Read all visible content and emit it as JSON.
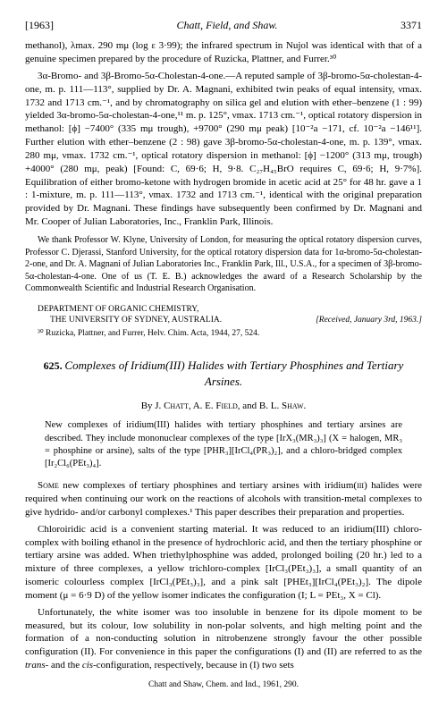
{
  "header": {
    "year": "[1963]",
    "authors": "Chatt, Field, and Shaw.",
    "page": "3371"
  },
  "body1": "methanol), λmax. 290 mμ (log ε 3·99); the infrared spectrum in Nujol was identical with that of a genuine specimen prepared by the procedure of Ruzicka, Plattner, and Furrer.³⁰",
  "body2": "3α-Bromo- and 3β-Bromo-5α-Cholestan-4-one.—A reputed sample of 3β-bromo-5α-cholestan-4-one, m. p. 111—113°, supplied by Dr. A. Magnani, exhibited twin peaks of equal intensity, νmax. 1732 and 1713 cm.⁻¹, and by chromatography on silica gel and elution with ether–benzene (1 : 99) yielded 3α-bromo-5α-cholestan-4-one,¹¹ m. p. 125°, νmax. 1713 cm.⁻¹, optical rotatory dispersion in methanol: [ϕ] −7400° (335 mμ trough), +9700° (290 mμ peak) [10⁻²a −171, cf. 10⁻²a −146¹¹]. Further elution with ether–benzene (2 : 98) gave 3β-bromo-5α-cholestan-4-one, m. p. 139°, νmax. 280 mμ, νmax. 1732 cm.⁻¹, optical rotatory dispersion in methanol: [ϕ] −1200° (313 mμ, trough) +4000° (280 mμ, peak) [Found: C, 69·6; H, 9·8. C₂₇H₄₅BrO requires C, 69·6; H, 9·7%]. Equilibration of either bromo-ketone with hydrogen bromide in acetic acid at 25° for 48 hr. gave a 1 : 1-mixture, m. p. 111—113°, νmax. 1732 and 1713 cm.⁻¹, identical with the original preparation provided by Dr. Magnani. These findings have subsequently been confirmed by Dr. Magnani and Mr. Cooper of Julian Laboratories, Inc., Franklin Park, Illinois.",
  "ack": "We thank Professor W. Klyne, University of London, for measuring the optical rotatory dispersion curves, Professor C. Djerassi, Stanford University, for the optical rotatory dispersion data for 1α-bromo-5α-cholestan-2-one, and Dr. A. Magnani of Julian Laboratories Inc., Franklin Park, Ill., U.S.A., for a specimen of 3β-bromo-5α-cholestan-4-one. One of us (T. E. B.) acknowledges the award of a Research Scholarship by the Commonwealth Scientific and Industrial Research Organisation.",
  "dept": {
    "line1": "DEPARTMENT OF ORGANIC CHEMISTRY,",
    "line2": "THE UNIVERSITY OF SYDNEY, AUSTRALIA.",
    "received": "[Received, January 3rd, 1963.]"
  },
  "footnote30": "³⁰ Ruzicka, Plattner, and Furrer, Helv. Chim. Acta, 1944, 27, 524.",
  "article": {
    "num": "625.",
    "title": "Complexes of Iridium(III) Halides with Tertiary Phosphines and Tertiary Arsines.",
    "by": "By J. CHATT, A. E. FIELD, and B. L. SHAW.",
    "abstract": "New complexes of iridium(III) halides with tertiary phosphines and tertiary arsines are described. They include mononuclear complexes of the type [IrX₃(MR₃)₃] (X = halogen, MR₃ = phosphine or arsine), salts of the type [PHR₃][IrCl₄(PR₃)₂], and a chloro-bridged complex [Ir₂Cl₆(PEt₃)₄].",
    "p1": "SOME new complexes of tertiary phosphines and tertiary arsines with iridium(III) halides were required when continuing our work on the reactions of alcohols with transition-metal complexes to give hydrido- and/or carbonyl complexes.¹ This paper describes their preparation and properties.",
    "p2": "Chloroiridic acid is a convenient starting material. It was reduced to an iridium(III) chloro-complex with boiling ethanol in the presence of hydrochloric acid, and then the tertiary phosphine or tertiary arsine was added. When triethylphosphine was added, prolonged boiling (20 hr.) led to a mixture of three complexes, a yellow trichloro-complex [IrCl₃(PEt₃)₃], a small quantity of an isomeric colourless complex [IrCl₃(PEt₃)₃], and a pink salt [PHEt₃][IrCl₄(PEt₃)₂]. The dipole moment (μ = 6·9 D) of the yellow isomer indicates the configuration (I; L = PEt₃, X = Cl).",
    "p3": "Unfortunately, the white isomer was too insoluble in benzene for its dipole moment to be measured, but its colour, low solubility in non-polar solvents, and high melting point and the formation of a non-conducting solution in nitrobenzene strongly favour the other possible configuration (II). For convenience in this paper the configurations (I) and (II) are referred to as the trans- and the cis-configuration, respectively, because in (I) two sets"
  },
  "bottomref": "Chatt and Shaw, Chem. and Ind., 1961, 290."
}
